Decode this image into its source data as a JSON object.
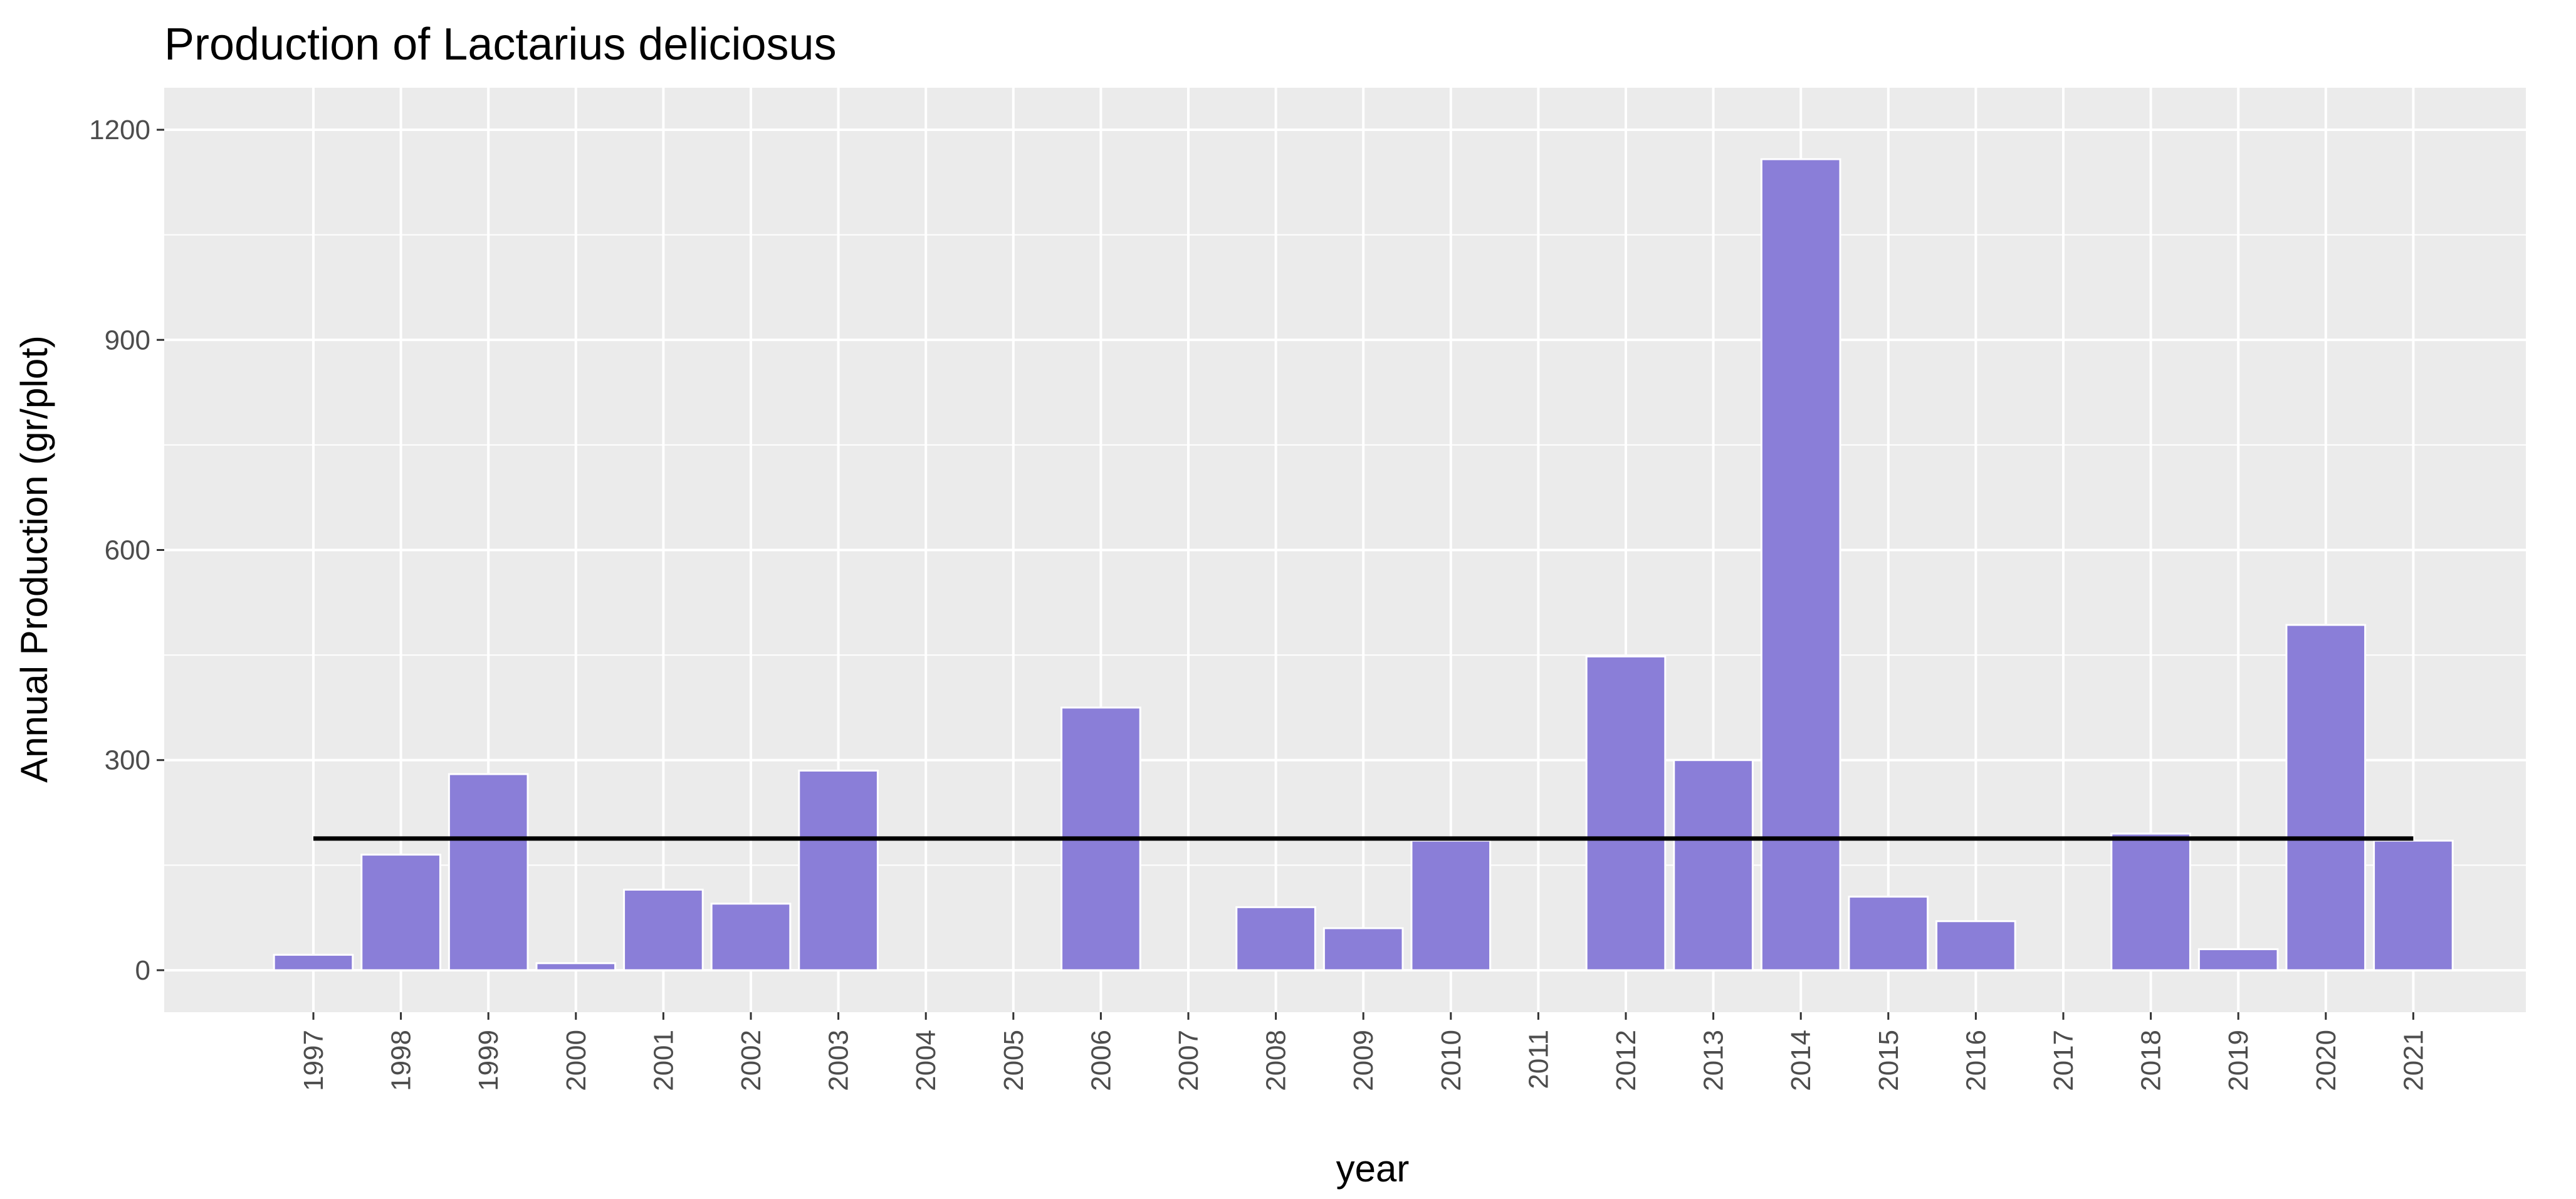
{
  "chart_data": {
    "type": "bar",
    "title": "Production of Lactarius deliciosus",
    "xlabel": "year",
    "ylabel": "Annual Production (gr/plot)",
    "categories": [
      "1997",
      "1998",
      "1999",
      "2000",
      "2001",
      "2002",
      "2003",
      "2004",
      "2005",
      "2006",
      "2007",
      "2008",
      "2009",
      "2010",
      "2011",
      "2012",
      "2013",
      "2014",
      "2015",
      "2016",
      "2017",
      "2018",
      "2019",
      "2020",
      "2021"
    ],
    "values": [
      22,
      165,
      280,
      10,
      115,
      95,
      285,
      0,
      0,
      375,
      0,
      90,
      60,
      185,
      0,
      448,
      300,
      1158,
      105,
      70,
      0,
      195,
      30,
      493,
      185
    ],
    "ylim": [
      -60,
      1260
    ],
    "yticks": [
      0,
      300,
      600,
      900,
      1200
    ],
    "reference_line": {
      "value": 188,
      "from": "1997",
      "to": "2021",
      "color": "#000000"
    },
    "bar_color": "#8a7ed8",
    "bar_edge_color": "#ffffff",
    "panel_background": "#ebebeb",
    "grid": true,
    "legend": "none"
  }
}
